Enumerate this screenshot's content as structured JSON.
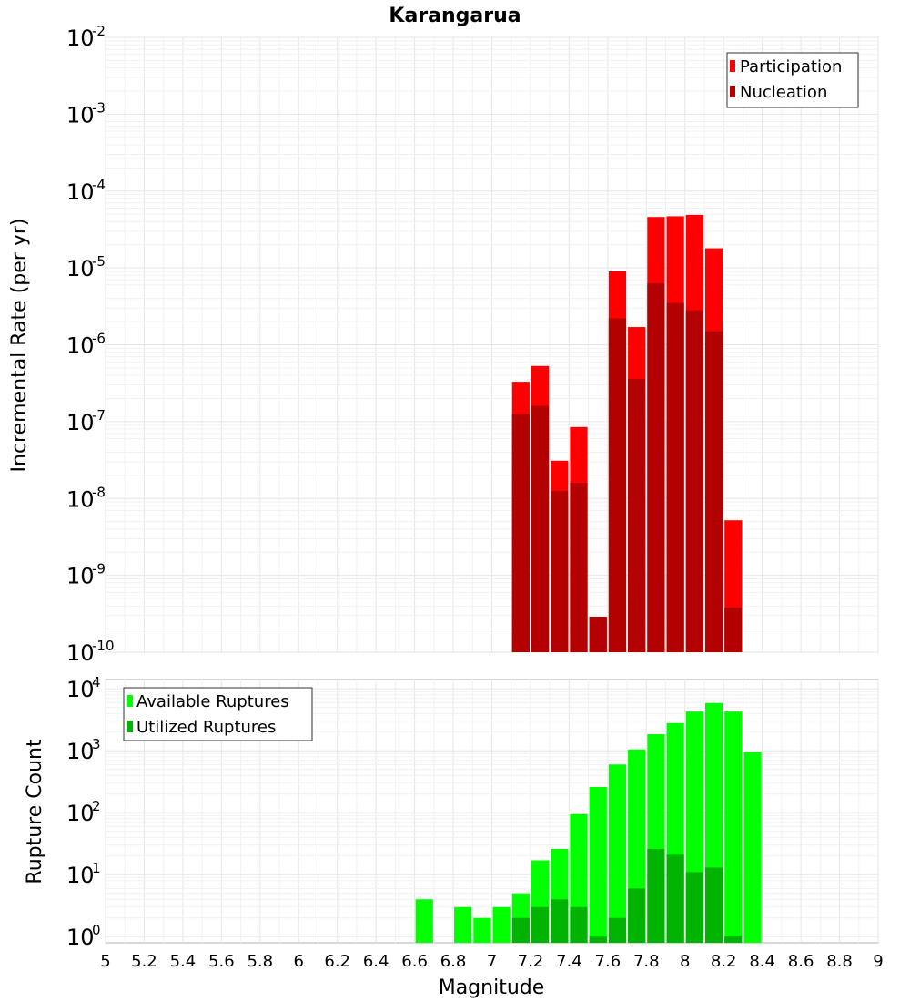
{
  "chart_data": [
    {
      "type": "bar",
      "title": "Karangarua",
      "xlabel": "",
      "ylabel": "Incremental Rate (per yr)",
      "yscale": "log",
      "ylim_exp": [
        -10,
        -2
      ],
      "xlim": [
        5,
        9
      ],
      "grid": true,
      "legend_position": "top-right",
      "series": [
        {
          "name": "Participation",
          "color": "#ff0000",
          "x": [
            7.15,
            7.25,
            7.35,
            7.45,
            7.55,
            7.65,
            7.75,
            7.85,
            7.95,
            8.05,
            8.15,
            8.25
          ],
          "values": [
            3.3e-07,
            5.3e-07,
            3.1e-08,
            8.5e-08,
            2.9e-10,
            9e-06,
            1.7e-06,
            4.6e-05,
            4.7e-05,
            4.9e-05,
            1.8e-05,
            5.2e-09
          ]
        },
        {
          "name": "Nucleation",
          "color": "#b30000",
          "x": [
            7.15,
            7.25,
            7.35,
            7.45,
            7.55,
            7.65,
            7.75,
            7.85,
            7.95,
            8.05,
            8.15,
            8.25
          ],
          "values": [
            1.25e-07,
            1.6e-07,
            1.25e-08,
            1.6e-08,
            2.9e-10,
            2.2e-06,
            3.6e-07,
            6.3e-06,
            3.5e-06,
            2.8e-06,
            1.5e-06,
            3.8e-10
          ]
        }
      ]
    },
    {
      "type": "bar",
      "title": "",
      "xlabel": "Magnitude",
      "ylabel": "Rupture Count",
      "yscale": "log",
      "ylim_exp": [
        0,
        4
      ],
      "xlim": [
        5,
        9
      ],
      "grid": true,
      "legend_position": "top-left",
      "x_ticks": [
        "5",
        "5.2",
        "5.4",
        "5.6",
        "5.8",
        "6",
        "6.2",
        "6.4",
        "6.6",
        "6.8",
        "7",
        "7.2",
        "7.4",
        "7.6",
        "7.8",
        "8",
        "8.2",
        "8.4",
        "8.6",
        "8.8",
        "9"
      ],
      "series": [
        {
          "name": "Available Ruptures",
          "color": "#00ff00",
          "x": [
            6.65,
            6.85,
            6.95,
            7.05,
            7.15,
            7.25,
            7.35,
            7.45,
            7.55,
            7.65,
            7.75,
            7.85,
            7.95,
            8.05,
            8.15,
            8.25,
            8.35
          ],
          "values": [
            4,
            3,
            2,
            3,
            5,
            17,
            26,
            95,
            260,
            600,
            1050,
            1850,
            2800,
            4300,
            5900,
            4300,
            950
          ]
        },
        {
          "name": "Utilized Ruptures",
          "color": "#00b300",
          "x": [
            7.15,
            7.25,
            7.35,
            7.45,
            7.55,
            7.65,
            7.75,
            7.85,
            7.95,
            8.05,
            8.15,
            8.25
          ],
          "values": [
            2,
            3,
            4,
            3,
            1,
            2,
            6,
            26,
            21,
            11,
            13,
            1
          ]
        }
      ]
    }
  ]
}
